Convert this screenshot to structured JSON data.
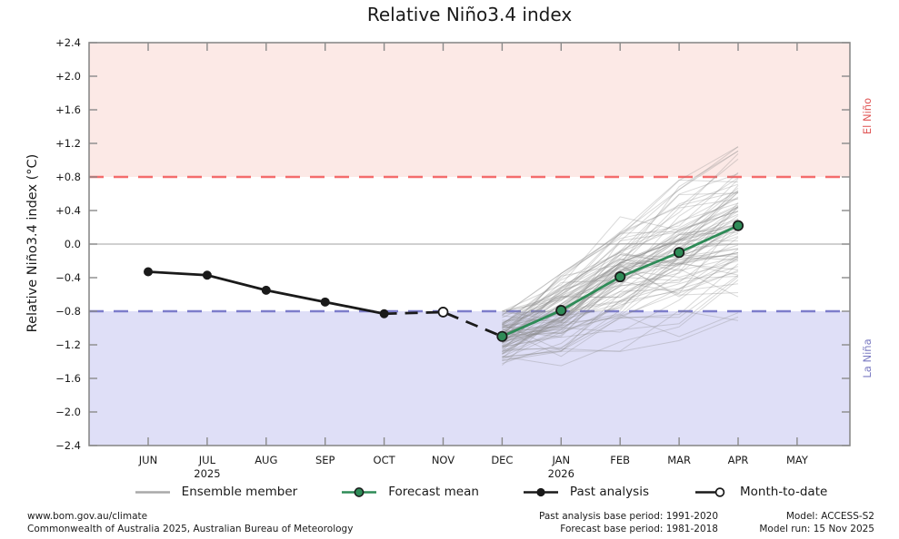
{
  "title": "Relative Niño3.4 index",
  "legend": [
    {
      "key": "ensemble",
      "label": "Ensemble member"
    },
    {
      "key": "forecast",
      "label": "Forecast mean"
    },
    {
      "key": "past",
      "label": "Past analysis"
    },
    {
      "key": "mtd",
      "label": "Month-to-date"
    }
  ],
  "footer": {
    "left_line1": "www.bom.gov.au/climate",
    "left_line2": "Commonwealth of Australia 2025, Australian Bureau of Meteorology",
    "center_line1": "Past analysis base period: 1991-2020",
    "center_line2": "Forecast base period: 1981-2018",
    "right_line1": "Model: ACCESS-S2",
    "right_line2": "Model run: 15 Nov 2025"
  },
  "chart_data": {
    "type": "line",
    "title": "Relative Niño3.4 index",
    "xlabel": "",
    "ylabel": "Relative Niño3.4 index (°C)",
    "ylim": [
      -2.4,
      2.4
    ],
    "ytick_step": 0.4,
    "ytick_labels": [
      "+2.4",
      "+2.0",
      "+1.6",
      "+1.2",
      "+0.8",
      "+0.4",
      "0.0",
      "−0.4",
      "−0.8",
      "−1.2",
      "−1.6",
      "−2.0",
      "−2.4"
    ],
    "categories": [
      "JUN",
      "JUL",
      "AUG",
      "SEP",
      "OCT",
      "NOV",
      "DEC",
      "JAN",
      "FEB",
      "MAR",
      "APR",
      "MAY"
    ],
    "year_labels": [
      {
        "month_index": 1,
        "label": "2025"
      },
      {
        "month_index": 7,
        "label": "2026"
      }
    ],
    "grid": "zero-line-only",
    "legend_position": "bottom",
    "thresholds": {
      "el_nino": 0.8,
      "la_nina": -0.8
    },
    "band_labels": {
      "el_nino": "El Niño",
      "la_nina": "La Niña"
    },
    "series": [
      {
        "name": "Past analysis",
        "x": [
          0,
          1,
          2,
          3,
          4
        ],
        "values": [
          -0.33,
          -0.37,
          -0.55,
          -0.69,
          -0.83
        ]
      },
      {
        "name": "Month-to-date",
        "x": [
          4,
          5,
          6
        ],
        "values": [
          -0.83,
          -0.81,
          -1.1
        ],
        "marker_month_index": 5,
        "marker_value": -0.81
      },
      {
        "name": "Forecast mean",
        "x": [
          6,
          7,
          8,
          9,
          10
        ],
        "values": [
          -1.1,
          -0.79,
          -0.39,
          -0.1,
          0.22
        ]
      }
    ],
    "ensemble": {
      "name": "Ensemble member",
      "count": 90,
      "x": [
        6,
        7,
        8,
        9,
        10
      ],
      "mean": [
        -1.1,
        -0.79,
        -0.39,
        -0.1,
        0.22
      ],
      "start_spread": 0.17,
      "step_spread": 0.24,
      "min": [
        -1.5,
        -1.45,
        -1.28,
        -1.15,
        -1.25
      ],
      "max": [
        -0.8,
        -0.35,
        0.45,
        0.85,
        1.16
      ],
      "seed": 42
    },
    "colors": {
      "el_nino_band": "#fce9e6",
      "la_nina_band": "#dfdff7",
      "el_nino_dash": "#f46c6c",
      "la_nina_dash": "#7d7dcb",
      "el_nino_text": "#e05757",
      "la_nina_text": "#7a7ac2",
      "zero_line": "#b5b5b5",
      "frame": "#8a8a8a",
      "ensemble": "#8a8a8a",
      "forecast": "#2e8b57",
      "past": "#1a1a1a",
      "mtd_fill": "#ffffff",
      "tick_text": "#1a1a1a"
    }
  }
}
